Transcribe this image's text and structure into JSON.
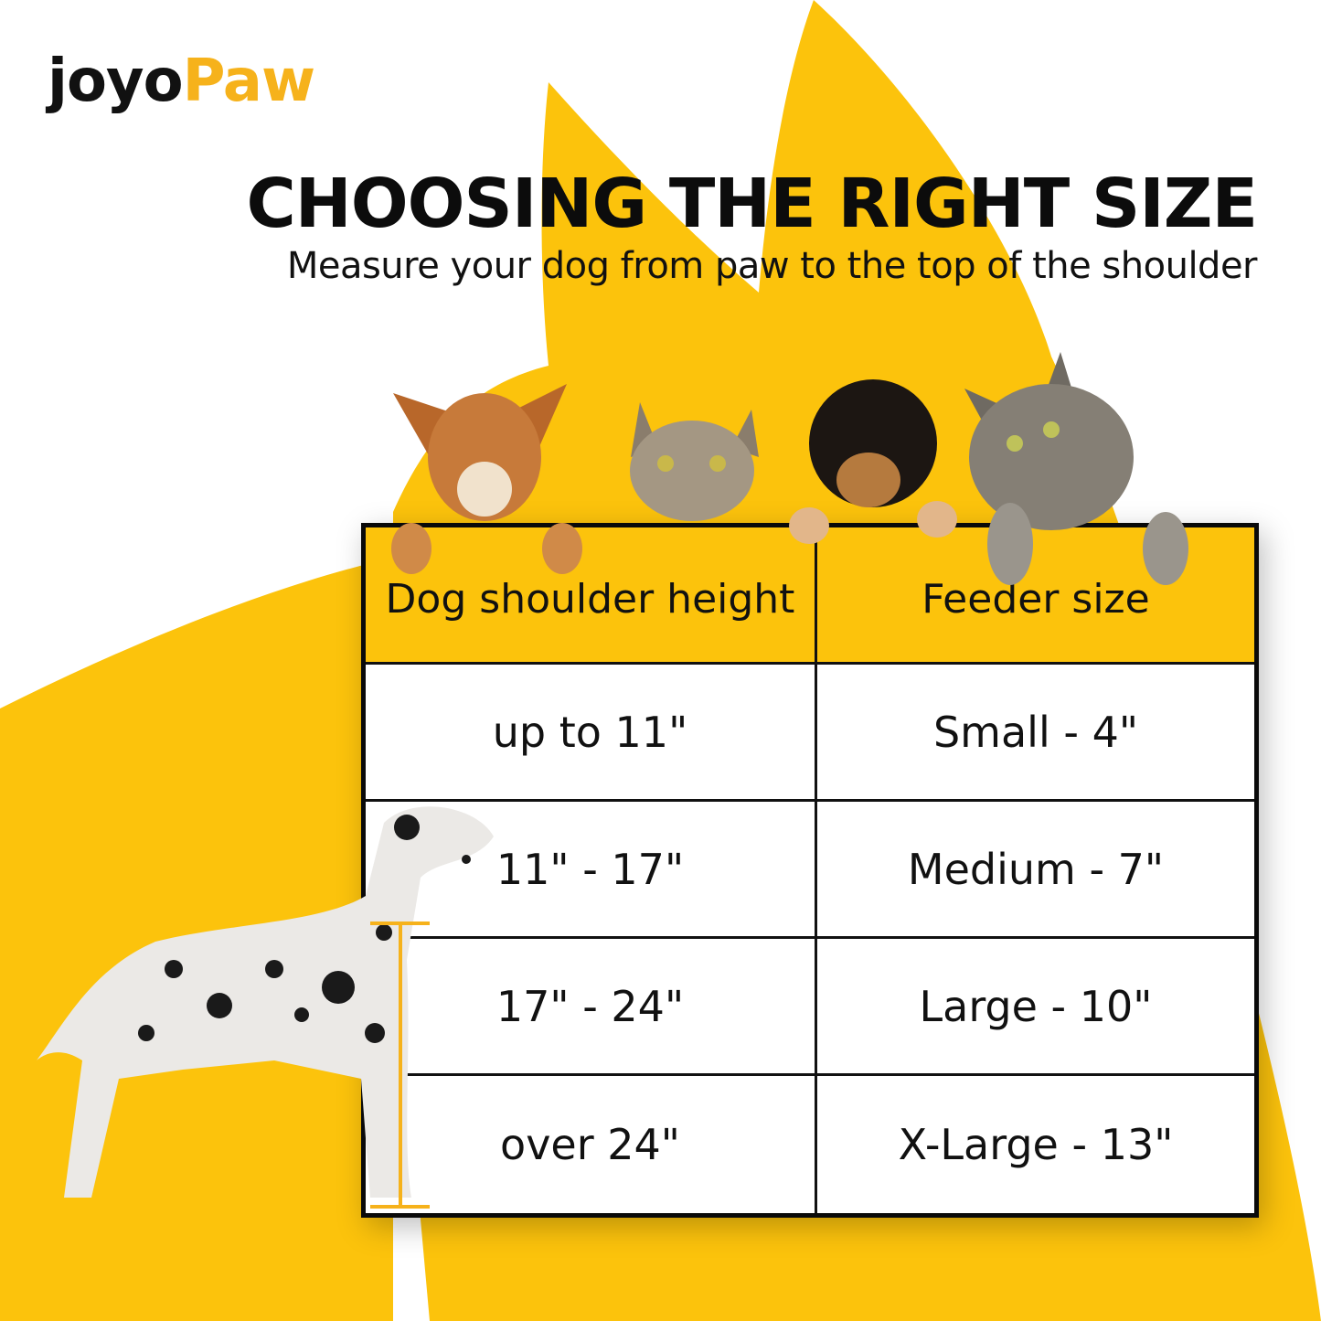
{
  "brand": {
    "logo_part1": "joyo",
    "logo_part2": "Paw"
  },
  "header": {
    "title": "CHOOSING THE RIGHT SIZE",
    "subtitle": "Measure your dog from paw to the top of the shoulder"
  },
  "colors": {
    "accent": "#fcc30c",
    "logo_accent": "#f6b21b",
    "text": "#111111"
  },
  "table": {
    "headers": [
      "Dog shoulder height",
      "Feeder size"
    ],
    "rows": [
      [
        "up to 11\"",
        "Small - 4\""
      ],
      [
        "11\" - 17\"",
        "Medium - 7\""
      ],
      [
        "17\" - 24\"",
        "Large - 10\""
      ],
      [
        "over 24\"",
        "X-Large - 13\""
      ]
    ]
  }
}
